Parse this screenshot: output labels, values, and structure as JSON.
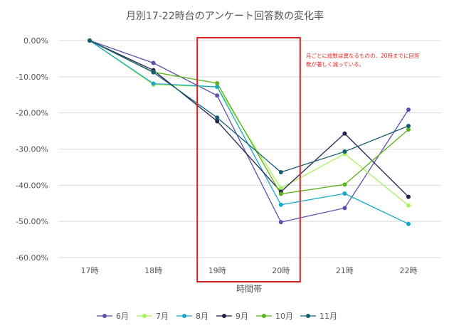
{
  "chart_data": {
    "type": "line",
    "title": "月別17-22時台のアンケート回答数の変化率",
    "xlabel": "時間帯",
    "ylabel": "",
    "categories": [
      "17時",
      "18時",
      "19時",
      "20時",
      "21時",
      "22時"
    ],
    "ylim": [
      -0.6,
      0.0
    ],
    "yticks": [
      "0.00%",
      "-10.00%",
      "-20.00%",
      "-30.00%",
      "-40.00%",
      "-50.00%",
      "-60.00%"
    ],
    "ytick_values": [
      0,
      -0.1,
      -0.2,
      -0.3,
      -0.4,
      -0.5,
      -0.6
    ],
    "grid": true,
    "legend_position": "bottom",
    "series": [
      {
        "name": "6月",
        "color": "#5b4fb0",
        "values": [
          0,
          -0.062,
          -0.152,
          -0.502,
          -0.463,
          -0.191
        ]
      },
      {
        "name": "7月",
        "color": "#a6f25a",
        "values": [
          0,
          -0.122,
          -0.128,
          -0.408,
          -0.313,
          -0.456
        ]
      },
      {
        "name": "8月",
        "color": "#16a8c6",
        "values": [
          0,
          -0.119,
          -0.128,
          -0.454,
          -0.423,
          -0.507
        ]
      },
      {
        "name": "9月",
        "color": "#231f4f",
        "values": [
          0,
          -0.082,
          -0.223,
          -0.418,
          -0.257,
          -0.432
        ]
      },
      {
        "name": "10月",
        "color": "#58b21a",
        "values": [
          0,
          -0.087,
          -0.118,
          -0.424,
          -0.398,
          -0.246
        ]
      },
      {
        "name": "11月",
        "color": "#135d74",
        "values": [
          0,
          -0.088,
          -0.213,
          -0.364,
          -0.307,
          -0.236
        ]
      }
    ],
    "annotation": {
      "lines": [
        "月ごとに総数は異なるものの、20時までに回答",
        "数が著しく減っている。"
      ],
      "color": "#e8231f"
    },
    "highlight": {
      "from_category": "19時",
      "to_category": "20時",
      "color": "#d42020"
    }
  }
}
